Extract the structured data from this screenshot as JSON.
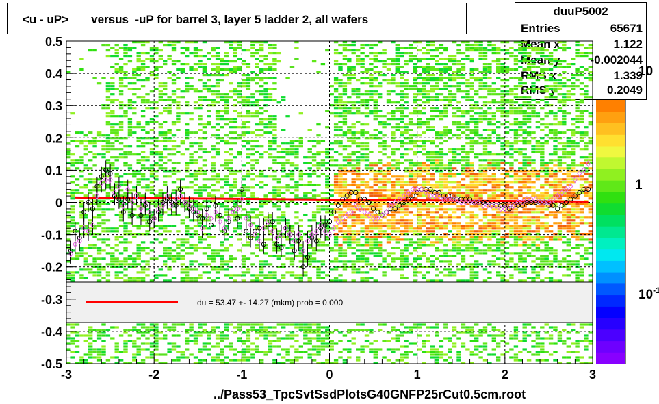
{
  "title": "<u - uP>       versus  -uP for barrel 3, layer 5 ladder 2, all wafers",
  "stats": {
    "name": "duuP5002",
    "rows": [
      {
        "label": "Entries",
        "value": "65671"
      },
      {
        "label": "Mean x",
        "value": "1.122"
      },
      {
        "label": "Mean y",
        "value": "-0.002044"
      },
      {
        "label": "RMS x",
        "value": "1.339"
      },
      {
        "label": "RMS y",
        "value": "0.2049"
      }
    ]
  },
  "footer": "../Pass53_TpcSvtSsdPlotsG40GNFP25rCut0.5cm.root",
  "legend": {
    "text": "du =   53.47 +- 14.27 (mkm) prob = 0.000",
    "line_color": "#ff0000"
  },
  "colorbar": {
    "labels": [
      "10",
      "1",
      "10"
    ],
    "superscripts": [
      "",
      "",
      "-1"
    ],
    "colors": [
      "#8800ff",
      "#6e00ff",
      "#4b00ff",
      "#2700ff",
      "#0400ff",
      "#0028ff",
      "#0058ff",
      "#0090ff",
      "#00c0ff",
      "#00e8f0",
      "#00f0c0",
      "#00e890",
      "#00e060",
      "#10dc30",
      "#30e010",
      "#60e818",
      "#90f020",
      "#c0f830",
      "#f0f840",
      "#ffe030",
      "#ffc020",
      "#ffa010",
      "#ff8000"
    ]
  },
  "chart_data": {
    "type": "heatmap",
    "title": "<u - uP>       versus  -uP for barrel 3, layer 5 ladder 2, all wafers",
    "xlim": [
      -3,
      3
    ],
    "ylim": [
      -0.5,
      0.5
    ],
    "x_ticks": [
      -3,
      -2,
      -1,
      0,
      1,
      2,
      3
    ],
    "y_ticks": [
      -0.5,
      -0.4,
      -0.3,
      -0.2,
      -0.1,
      0,
      0.1,
      0.2,
      0.3,
      0.4,
      0.5
    ],
    "grid": true,
    "fit_line": {
      "color": "#ff0000",
      "x": [
        -2.9,
        2.95
      ],
      "y": [
        0.015,
        0.002
      ]
    },
    "series": [
      {
        "name": "mean",
        "marker": "circle",
        "color": "#000000",
        "x": [
          -2.95,
          -2.9,
          -2.85,
          -2.8,
          -2.75,
          -2.7,
          -2.65,
          -2.6,
          -2.55,
          -2.5,
          -2.45,
          -2.4,
          -2.35,
          -2.3,
          -2.25,
          -2.2,
          -2.15,
          -2.1,
          -2.05,
          -2.0,
          -1.95,
          -1.9,
          -1.85,
          -1.8,
          -1.75,
          -1.7,
          -1.65,
          -1.6,
          -1.55,
          -1.5,
          -1.45,
          -1.4,
          -1.35,
          -1.3,
          -1.25,
          -1.2,
          -1.15,
          -1.1,
          -1.05,
          -1.0,
          -0.95,
          -0.9,
          -0.85,
          -0.8,
          -0.75,
          -0.7,
          -0.65,
          -0.6,
          -0.55,
          -0.5,
          -0.45,
          -0.4,
          -0.35,
          -0.3,
          -0.25,
          -0.2,
          -0.15,
          -0.1,
          -0.05,
          0.0,
          0.05,
          0.1,
          0.15,
          0.2,
          0.25,
          0.3,
          0.35,
          0.4,
          0.45,
          0.5,
          0.55,
          0.6,
          0.65,
          0.7,
          0.75,
          0.8,
          0.85,
          0.9,
          0.95,
          1.0,
          1.05,
          1.1,
          1.15,
          1.2,
          1.25,
          1.3,
          1.35,
          1.4,
          1.45,
          1.5,
          1.55,
          1.6,
          1.65,
          1.7,
          1.75,
          1.8,
          1.85,
          1.9,
          1.95,
          2.0,
          2.05,
          2.1,
          2.15,
          2.2,
          2.25,
          2.3,
          2.35,
          2.4,
          2.45,
          2.5,
          2.55,
          2.6,
          2.65,
          2.7,
          2.75,
          2.8,
          2.85,
          2.9,
          2.95
        ],
        "y": [
          -0.15,
          -0.09,
          -0.11,
          -0.03,
          0.0,
          -0.02,
          0.05,
          0.08,
          0.1,
          0.09,
          0.02,
          0.01,
          -0.03,
          0.01,
          -0.04,
          0.02,
          -0.04,
          -0.01,
          -0.06,
          -0.05,
          -0.03,
          0.0,
          0.01,
          0.0,
          -0.01,
          0.04,
          0.0,
          -0.02,
          -0.03,
          -0.04,
          -0.05,
          -0.02,
          -0.07,
          -0.01,
          -0.04,
          -0.09,
          -0.06,
          -0.02,
          -0.05,
          0.04,
          -0.09,
          -0.11,
          -0.09,
          -0.08,
          -0.13,
          -0.07,
          -0.06,
          -0.13,
          -0.14,
          -0.08,
          -0.1,
          -0.15,
          -0.12,
          -0.2,
          -0.17,
          -0.11,
          -0.12,
          -0.08,
          -0.07,
          -0.06,
          -0.03,
          -0.01,
          0.01,
          0.02,
          0.03,
          0.03,
          0.01,
          0.01,
          0.0,
          -0.02,
          -0.03,
          -0.04,
          -0.03,
          -0.02,
          -0.02,
          -0.01,
          0.0,
          0.01,
          0.02,
          0.03,
          0.04,
          0.04,
          0.04,
          0.03,
          0.03,
          0.02,
          0.02,
          0.02,
          0.01,
          0.01,
          0.01,
          0.01,
          0.0,
          0.0,
          0.0,
          0.0,
          -0.01,
          -0.01,
          -0.01,
          -0.01,
          -0.02,
          -0.01,
          -0.01,
          -0.01,
          0.0,
          0.0,
          0.0,
          0.0,
          0.0,
          -0.01,
          -0.01,
          -0.02,
          -0.01,
          0.0,
          0.01,
          0.02,
          0.03,
          0.04,
          0.04
        ]
      },
      {
        "name": "profile",
        "marker": "diamond",
        "color": "#e868e8",
        "x": [
          -2.95,
          -2.9,
          -2.85,
          -2.8,
          -2.75,
          -2.7,
          -2.65,
          -2.6,
          -2.55,
          -2.5,
          -2.45,
          -2.4,
          -2.35,
          -2.3,
          -2.25,
          -2.2,
          -2.15,
          -2.1,
          -2.05,
          -2.0,
          -1.95,
          -1.9,
          -1.85,
          -1.8,
          -1.75,
          -1.7,
          -1.65,
          -1.6,
          -1.55,
          -1.5,
          -1.45,
          -1.4,
          -1.35,
          -1.3,
          -1.25,
          -1.2,
          -1.15,
          -1.1,
          -1.05,
          -1.0,
          -0.95,
          -0.9,
          -0.85,
          -0.8,
          -0.75,
          -0.7,
          -0.65,
          -0.6,
          -0.55,
          -0.5,
          -0.45,
          -0.4,
          -0.35,
          -0.3,
          -0.25,
          -0.2,
          -0.15,
          -0.1,
          -0.05,
          0.0,
          0.05,
          0.1,
          0.15,
          0.2,
          0.25,
          0.3,
          0.35,
          0.4,
          0.45,
          0.5,
          0.55,
          0.6,
          0.65,
          0.7,
          0.75,
          0.8,
          0.85,
          0.9,
          0.95,
          1.0,
          1.05,
          1.1,
          1.15,
          1.2,
          1.25,
          1.3,
          1.35,
          1.4,
          1.45,
          1.5,
          1.55,
          1.6,
          1.65,
          1.7,
          1.75,
          1.8,
          1.85,
          1.9,
          1.95,
          2.0,
          2.05,
          2.1,
          2.15,
          2.2,
          2.25,
          2.3,
          2.35,
          2.4,
          2.45,
          2.5,
          2.55,
          2.6,
          2.65,
          2.7,
          2.75,
          2.8,
          2.85,
          2.9,
          2.95
        ],
        "y": [
          -0.16,
          -0.13,
          -0.12,
          -0.08,
          -0.09,
          -0.07,
          0.02,
          0.06,
          0.07,
          0.07,
          0.03,
          0.05,
          -0.01,
          0.04,
          0.0,
          0.02,
          -0.02,
          0.0,
          -0.03,
          -0.05,
          -0.02,
          -0.01,
          0.02,
          -0.01,
          0.01,
          0.02,
          0.0,
          -0.01,
          -0.02,
          -0.03,
          -0.08,
          -0.04,
          -0.05,
          -0.03,
          -0.06,
          -0.08,
          -0.05,
          -0.03,
          -0.02,
          0.01,
          -0.05,
          -0.07,
          -0.1,
          -0.12,
          -0.08,
          -0.06,
          -0.09,
          -0.11,
          -0.1,
          -0.08,
          -0.1,
          -0.12,
          -0.1,
          -0.15,
          -0.12,
          -0.1,
          -0.09,
          -0.07,
          -0.09,
          -0.1,
          -0.08,
          -0.06,
          -0.05,
          -0.04,
          -0.03,
          -0.01,
          -0.02,
          -0.03,
          -0.04,
          -0.05,
          -0.05,
          -0.04,
          -0.03,
          -0.01,
          0.0,
          0.01,
          0.02,
          0.03,
          0.04,
          0.04,
          0.04,
          0.03,
          0.02,
          0.02,
          0.02,
          0.01,
          0.01,
          0.01,
          0.01,
          0.0,
          0.0,
          0.0,
          0.0,
          0.0,
          -0.01,
          -0.01,
          -0.01,
          -0.01,
          -0.02,
          -0.02,
          -0.01,
          -0.01,
          0.0,
          0.0,
          0.01,
          0.01,
          0.01,
          0.0,
          0.0,
          0.0,
          0.01,
          0.02,
          0.03,
          0.04,
          0.05,
          0.07,
          0.09,
          0.1,
          0.12
        ]
      }
    ]
  }
}
